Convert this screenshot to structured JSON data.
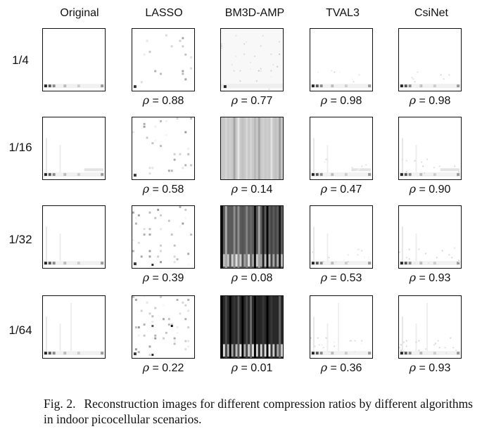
{
  "figure": {
    "column_headers": [
      "Original",
      "LASSO",
      "BM3D-AMP",
      "TVAL3",
      "CsiNet"
    ],
    "row_labels": [
      "1/4",
      "1/16",
      "1/32",
      "1/64"
    ],
    "rho_symbol": "ρ",
    "rho_values": [
      [
        "0.88",
        "0.77",
        "0.98",
        "0.98"
      ],
      [
        "0.58",
        "0.14",
        "0.47",
        "0.90"
      ],
      [
        "0.39",
        "0.08",
        "0.53",
        "0.93"
      ],
      [
        "0.22",
        "0.01",
        "0.36",
        "0.93"
      ]
    ]
  },
  "caption": {
    "label": "Fig. 2.",
    "text": "Reconstruction images for different compression ratios by different algorithms in indoor picocellular scenarios."
  }
}
